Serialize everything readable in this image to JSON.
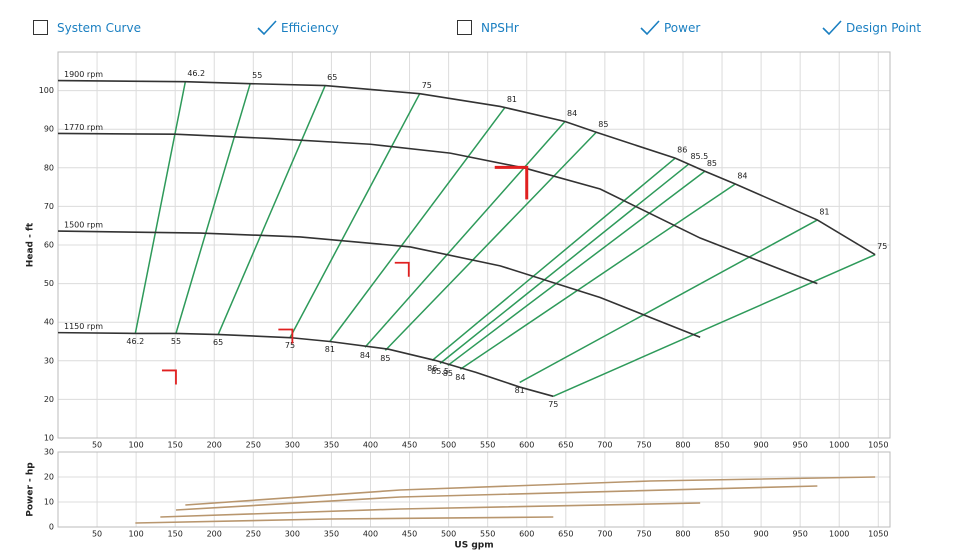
{
  "toolbar": [
    {
      "label": "System Curve",
      "checked": false
    },
    {
      "label": "Efficiency",
      "checked": true
    },
    {
      "label": "NPSHr",
      "checked": false
    },
    {
      "label": "Power",
      "checked": true
    },
    {
      "label": "Design Point",
      "checked": true
    }
  ],
  "chart_data": [
    {
      "type": "line",
      "ylabel": "Head - ft",
      "xlim": [
        0,
        1065
      ],
      "ylim": [
        10,
        110
      ],
      "xticks": [
        50,
        100,
        150,
        200,
        250,
        300,
        350,
        400,
        450,
        500,
        550,
        600,
        650,
        700,
        750,
        800,
        850,
        900,
        950,
        1000,
        1050
      ],
      "yticks": [
        10,
        20,
        30,
        40,
        50,
        60,
        70,
        80,
        90,
        100
      ],
      "grid": true,
      "series": [
        {
          "name": "1900 rpm",
          "color": "#333333",
          "x": [
            0,
            163,
            246,
            342,
            463,
            566,
            649,
            689,
            790,
            828,
            867,
            972,
            1046
          ],
          "y": [
            102.6,
            102.3,
            101.8,
            101.3,
            99.2,
            95.9,
            92.0,
            89.2,
            82.5,
            79.1,
            75.8,
            66.5,
            57.5
          ]
        },
        {
          "name": "1770 rpm",
          "color": "#333333",
          "x": [
            0,
            150,
            271,
            400,
            502,
            598,
            694,
            822,
            972
          ],
          "y": [
            88.9,
            88.7,
            87.6,
            86.1,
            83.8,
            79.9,
            74.5,
            61.8,
            50.0
          ]
        },
        {
          "name": "1500 rpm",
          "color": "#333333",
          "x": [
            0,
            182,
            310,
            451,
            566,
            694,
            822
          ],
          "y": [
            63.6,
            63.1,
            62.1,
            59.5,
            54.6,
            46.4,
            36.1
          ]
        },
        {
          "name": "1150 rpm",
          "color": "#333333",
          "x": [
            0,
            99,
            151,
            207,
            297,
            348,
            423,
            483,
            535,
            591,
            634
          ],
          "y": [
            37.3,
            37.1,
            37.1,
            36.8,
            36.0,
            35.0,
            33.0,
            30.1,
            27.0,
            23.2,
            20.8
          ]
        }
      ],
      "efficiency": {
        "color": "#2e9a5a",
        "lines": [
          {
            "label": "46.2",
            "x": [
              99,
              163
            ],
            "y": [
              37.1,
              102.3
            ]
          },
          {
            "label": "55",
            "x": [
              151,
              246
            ],
            "y": [
              37.1,
              101.8
            ]
          },
          {
            "label": "65",
            "x": [
              205,
              342
            ],
            "y": [
              36.8,
              101.3
            ]
          },
          {
            "label": "75",
            "x": [
              297,
              463
            ],
            "y": [
              36.0,
              99.2
            ]
          },
          {
            "label": "81",
            "x": [
              348,
              572
            ],
            "y": [
              35.0,
              95.6
            ]
          },
          {
            "label": "84",
            "x": [
              393,
              649
            ],
            "y": [
              33.5,
              92.0
            ]
          },
          {
            "label": "85",
            "x": [
              419,
              689
            ],
            "y": [
              32.7,
              89.2
            ]
          },
          {
            "label": "86",
            "x": [
              479,
              790
            ],
            "y": [
              30.1,
              82.5
            ]
          },
          {
            "label": "85.5",
            "x": [
              489,
              807
            ],
            "y": [
              29.3,
              80.9
            ]
          },
          {
            "label": "85",
            "x": [
              499,
              828
            ],
            "y": [
              28.8,
              79.1
            ]
          },
          {
            "label": "84",
            "x": [
              515,
              867
            ],
            "y": [
              27.8,
              75.8
            ]
          },
          {
            "label": "81",
            "x": [
              591,
              972
            ],
            "y": [
              24.4,
              66.5
            ]
          },
          {
            "label": "75",
            "x": [
              634,
              1046
            ],
            "y": [
              20.8,
              57.5
            ]
          }
        ]
      },
      "design_point": {
        "color": "#e02020",
        "x": [
          600
        ],
        "y": [
          80.1
        ]
      },
      "speed_points": {
        "color": "#e02020",
        "x": [
          151,
          300,
          449
        ],
        "y": [
          27.5,
          38.1,
          55.4
        ]
      }
    },
    {
      "type": "line",
      "ylabel": "Power - hp",
      "xlabel": "US gpm",
      "xlim": [
        0,
        1065
      ],
      "ylim": [
        0,
        30
      ],
      "xticks": [
        50,
        100,
        150,
        200,
        250,
        300,
        350,
        400,
        450,
        500,
        550,
        600,
        650,
        700,
        750,
        800,
        850,
        900,
        950,
        1000,
        1050
      ],
      "yticks": [
        0,
        10,
        20,
        30
      ],
      "grid": true,
      "series": [
        {
          "color": "#b8966e",
          "x": [
            163,
            438,
            758,
            1046
          ],
          "y": [
            8.8,
            14.8,
            18.4,
            20.0
          ]
        },
        {
          "color": "#b8966e",
          "x": [
            151,
            438,
            972
          ],
          "y": [
            6.8,
            12.0,
            16.4
          ]
        },
        {
          "color": "#b8966e",
          "x": [
            131,
            438,
            822
          ],
          "y": [
            4.0,
            7.2,
            9.6
          ]
        },
        {
          "color": "#b8966e",
          "x": [
            99,
            348,
            634
          ],
          "y": [
            1.6,
            3.2,
            4.0
          ]
        }
      ]
    }
  ]
}
